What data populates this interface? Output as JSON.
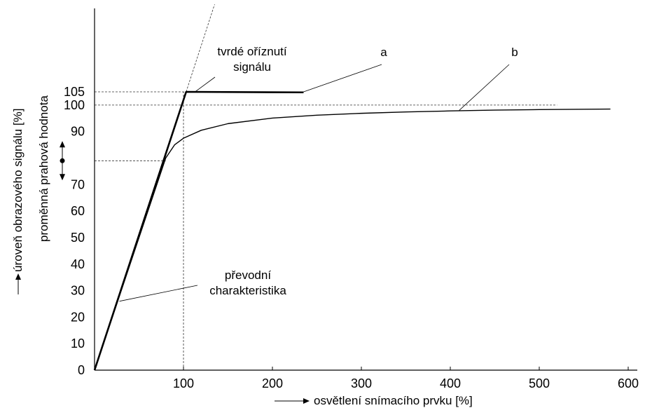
{
  "chart_data": {
    "type": "line",
    "xlabel": "osvětlení snímacího prvku [%]",
    "ylabel": "úroveň obrazového signálu [%]",
    "ylabel2": "proměnná prahová hodnota",
    "x_ticks": [
      "100",
      "200",
      "300",
      "400",
      "500",
      "600"
    ],
    "y_ticks": [
      "0",
      "10",
      "20",
      "30",
      "40",
      "50",
      "60",
      "70",
      "90",
      "100",
      "105"
    ],
    "xlim": [
      0,
      600
    ],
    "ylim": [
      0,
      105
    ],
    "grid": false,
    "series": [
      {
        "name": "a",
        "style": "thick",
        "x": [
          0,
          103,
          235
        ],
        "y": [
          0,
          105,
          104.8
        ]
      },
      {
        "name": "b",
        "style": "thin",
        "x": [
          0,
          80,
          90,
          100,
          120,
          150,
          200,
          250,
          300,
          350,
          400,
          450,
          500,
          580
        ],
        "y": [
          0,
          80,
          85,
          87.5,
          90.5,
          93,
          95.1,
          96.2,
          96.9,
          97.4,
          97.8,
          98.1,
          98.3,
          98.5
        ]
      }
    ],
    "reference_lines": [
      {
        "kind": "extension",
        "x": [
          103,
          135
        ],
        "y": [
          105,
          138
        ]
      },
      {
        "kind": "horizontal",
        "y": 105,
        "x_end": 103
      },
      {
        "kind": "horizontal",
        "y": 100,
        "x_end": 520
      },
      {
        "kind": "horizontal",
        "y": 79,
        "x_end": 80
      },
      {
        "kind": "vertical",
        "x": 100
      }
    ],
    "annotations": [
      {
        "lines": [
          "tvrdé oříznutí",
          "signálu"
        ],
        "target": [
          113,
          105
        ]
      },
      {
        "lines": [
          "a"
        ],
        "target": [
          235,
          105
        ]
      },
      {
        "lines": [
          "b"
        ],
        "target": [
          410,
          98
        ]
      },
      {
        "lines": [
          "převodní",
          "charakteristika"
        ],
        "target": [
          28,
          26
        ]
      }
    ],
    "threshold_marker": {
      "y": 79
    }
  }
}
